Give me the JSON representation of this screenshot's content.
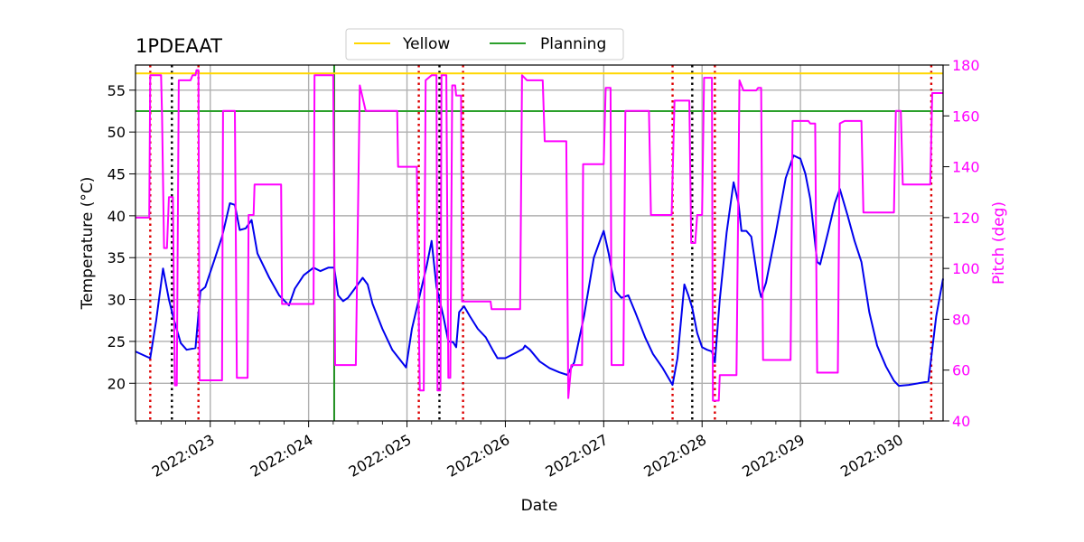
{
  "chart_data": {
    "type": "line",
    "title": "1PDEAAT",
    "xlabel": "Date",
    "ylabel": "Temperature ($^\\circ$C)",
    "ylabel_display": "Temperature (°C)",
    "y2label": "Pitch (deg)",
    "xlim": [
      22.24,
      30.45
    ],
    "ylim": [
      15.5,
      58
    ],
    "y2lim": [
      40,
      180
    ],
    "x_ticks": [
      {
        "value": 23,
        "label": "2022:023"
      },
      {
        "value": 24,
        "label": "2022:024"
      },
      {
        "value": 25,
        "label": "2022:025"
      },
      {
        "value": 26,
        "label": "2022:026"
      },
      {
        "value": 27,
        "label": "2022:027"
      },
      {
        "value": 28,
        "label": "2022:028"
      },
      {
        "value": 29,
        "label": "2022:029"
      },
      {
        "value": 30,
        "label": "2022:030"
      }
    ],
    "y_ticks": [
      20,
      25,
      30,
      35,
      40,
      45,
      50,
      55
    ],
    "y2_ticks": [
      40,
      60,
      80,
      100,
      120,
      140,
      160,
      180
    ],
    "grid": true,
    "legend_position": "top-center",
    "legend": [
      {
        "name": "Yellow",
        "color": "#ffd700"
      },
      {
        "name": "Planning",
        "color": "#2ca02c"
      }
    ],
    "hlines": [
      {
        "name": "Yellow",
        "value": 57.0,
        "color": "#ffd700"
      },
      {
        "name": "Planning",
        "value": 52.5,
        "color": "#2ca02c"
      }
    ],
    "vlines_red": [
      22.39,
      22.88,
      25.12,
      25.57,
      27.7,
      28.13,
      30.33
    ],
    "vlines_black": [
      22.61,
      25.33,
      27.9
    ],
    "vline_green": 24.26,
    "series": [
      {
        "name": "Temperature",
        "axis": "left",
        "color": "#0000ee",
        "points": [
          [
            22.24,
            23.8
          ],
          [
            22.35,
            23.2
          ],
          [
            22.39,
            23.0
          ],
          [
            22.45,
            27.5
          ],
          [
            22.52,
            33.7
          ],
          [
            22.58,
            30.0
          ],
          [
            22.63,
            27.6
          ],
          [
            22.7,
            24.8
          ],
          [
            22.76,
            24.0
          ],
          [
            22.85,
            24.2
          ],
          [
            22.9,
            31.0
          ],
          [
            22.95,
            31.5
          ],
          [
            23.05,
            35.0
          ],
          [
            23.12,
            37.5
          ],
          [
            23.15,
            39.0
          ],
          [
            23.2,
            41.5
          ],
          [
            23.25,
            41.3
          ],
          [
            23.3,
            38.3
          ],
          [
            23.36,
            38.5
          ],
          [
            23.42,
            39.5
          ],
          [
            23.48,
            35.5
          ],
          [
            23.6,
            32.6
          ],
          [
            23.7,
            30.5
          ],
          [
            23.8,
            29.3
          ],
          [
            23.86,
            31.3
          ],
          [
            23.95,
            32.9
          ],
          [
            24.05,
            33.8
          ],
          [
            24.12,
            33.4
          ],
          [
            24.2,
            33.8
          ],
          [
            24.26,
            33.8
          ],
          [
            24.3,
            30.5
          ],
          [
            24.35,
            29.8
          ],
          [
            24.4,
            30.2
          ],
          [
            24.5,
            31.8
          ],
          [
            24.55,
            32.6
          ],
          [
            24.6,
            31.8
          ],
          [
            24.65,
            29.5
          ],
          [
            24.75,
            26.5
          ],
          [
            24.85,
            24.0
          ],
          [
            24.95,
            22.5
          ],
          [
            24.99,
            21.9
          ],
          [
            25.05,
            26.5
          ],
          [
            25.12,
            30.0
          ],
          [
            25.2,
            34.0
          ],
          [
            25.25,
            37.0
          ],
          [
            25.3,
            31.5
          ],
          [
            25.33,
            30.0
          ],
          [
            25.37,
            28.0
          ],
          [
            25.42,
            25.0
          ],
          [
            25.47,
            24.9
          ],
          [
            25.5,
            24.3
          ],
          [
            25.53,
            28.5
          ],
          [
            25.58,
            29.2
          ],
          [
            25.64,
            28.0
          ],
          [
            25.72,
            26.5
          ],
          [
            25.8,
            25.5
          ],
          [
            25.87,
            24.0
          ],
          [
            25.92,
            23.0
          ],
          [
            26.0,
            23.0
          ],
          [
            26.1,
            23.6
          ],
          [
            26.18,
            24.1
          ],
          [
            26.2,
            24.5
          ],
          [
            26.25,
            24.0
          ],
          [
            26.35,
            22.6
          ],
          [
            26.45,
            21.8
          ],
          [
            26.55,
            21.3
          ],
          [
            26.63,
            21.0
          ],
          [
            26.7,
            22.5
          ],
          [
            26.8,
            28.0
          ],
          [
            26.9,
            35.0
          ],
          [
            26.97,
            37.3
          ],
          [
            27.0,
            38.2
          ],
          [
            27.05,
            35.5
          ],
          [
            27.12,
            31.0
          ],
          [
            27.18,
            30.2
          ],
          [
            27.25,
            30.5
          ],
          [
            27.32,
            28.5
          ],
          [
            27.42,
            25.5
          ],
          [
            27.5,
            23.5
          ],
          [
            27.6,
            21.8
          ],
          [
            27.7,
            19.8
          ],
          [
            27.75,
            23.0
          ],
          [
            27.82,
            31.8
          ],
          [
            27.86,
            30.5
          ],
          [
            27.9,
            29.0
          ],
          [
            27.95,
            26.0
          ],
          [
            28.0,
            24.3
          ],
          [
            28.05,
            24.0
          ],
          [
            28.1,
            23.8
          ],
          [
            28.13,
            22.5
          ],
          [
            28.18,
            30.0
          ],
          [
            28.25,
            38.0
          ],
          [
            28.32,
            44.0
          ],
          [
            28.37,
            41.5
          ],
          [
            28.4,
            38.2
          ],
          [
            28.45,
            38.2
          ],
          [
            28.5,
            37.5
          ],
          [
            28.58,
            31.2
          ],
          [
            28.6,
            30.3
          ],
          [
            28.65,
            32.0
          ],
          [
            28.75,
            38.0
          ],
          [
            28.85,
            44.5
          ],
          [
            28.93,
            47.2
          ],
          [
            29.0,
            46.8
          ],
          [
            29.05,
            45.0
          ],
          [
            29.1,
            42.0
          ],
          [
            29.17,
            34.5
          ],
          [
            29.2,
            34.2
          ],
          [
            29.28,
            38.0
          ],
          [
            29.35,
            41.5
          ],
          [
            29.4,
            43.2
          ],
          [
            29.48,
            40.0
          ],
          [
            29.55,
            37.0
          ],
          [
            29.62,
            34.5
          ],
          [
            29.7,
            28.5
          ],
          [
            29.78,
            24.5
          ],
          [
            29.87,
            22.0
          ],
          [
            29.95,
            20.3
          ],
          [
            30.0,
            19.7
          ],
          [
            30.1,
            19.8
          ],
          [
            30.3,
            20.2
          ],
          [
            30.38,
            28.0
          ],
          [
            30.45,
            32.5
          ]
        ]
      },
      {
        "name": "Pitch",
        "axis": "right",
        "color": "#ff00ff",
        "points": [
          [
            22.24,
            120
          ],
          [
            22.38,
            120
          ],
          [
            22.39,
            176
          ],
          [
            22.5,
            176
          ],
          [
            22.51,
            160
          ],
          [
            22.53,
            108
          ],
          [
            22.56,
            108
          ],
          [
            22.58,
            128
          ],
          [
            22.62,
            128
          ],
          [
            22.64,
            54
          ],
          [
            22.66,
            54
          ],
          [
            22.68,
            174
          ],
          [
            22.8,
            174
          ],
          [
            22.82,
            176
          ],
          [
            22.85,
            176
          ],
          [
            22.86,
            178
          ],
          [
            22.88,
            178
          ],
          [
            22.89,
            56
          ],
          [
            23.07,
            56
          ],
          [
            23.12,
            56
          ],
          [
            23.13,
            162
          ],
          [
            23.25,
            162
          ],
          [
            23.27,
            57
          ],
          [
            23.38,
            57
          ],
          [
            23.39,
            121
          ],
          [
            23.44,
            121
          ],
          [
            23.45,
            133
          ],
          [
            23.55,
            133
          ],
          [
            23.72,
            133
          ],
          [
            23.73,
            86
          ],
          [
            23.9,
            86
          ],
          [
            24.05,
            86
          ],
          [
            24.06,
            176
          ],
          [
            24.25,
            176
          ],
          [
            24.27,
            62
          ],
          [
            24.48,
            62
          ],
          [
            24.52,
            172
          ],
          [
            24.58,
            162
          ],
          [
            24.6,
            162
          ],
          [
            24.9,
            162
          ],
          [
            24.91,
            140
          ],
          [
            25.1,
            140
          ],
          [
            25.13,
            52
          ],
          [
            25.17,
            52
          ],
          [
            25.19,
            174
          ],
          [
            25.25,
            176
          ],
          [
            25.3,
            176
          ],
          [
            25.31,
            52
          ],
          [
            25.34,
            52
          ],
          [
            25.35,
            176
          ],
          [
            25.4,
            176
          ],
          [
            25.42,
            57
          ],
          [
            25.44,
            57
          ],
          [
            25.46,
            172
          ],
          [
            25.49,
            172
          ],
          [
            25.5,
            168
          ],
          [
            25.55,
            168
          ],
          [
            25.56,
            87
          ],
          [
            25.85,
            87
          ],
          [
            25.86,
            84
          ],
          [
            26.15,
            84
          ],
          [
            26.17,
            176
          ],
          [
            26.22,
            174
          ],
          [
            26.38,
            174
          ],
          [
            26.4,
            150
          ],
          [
            26.62,
            150
          ],
          [
            26.64,
            49
          ],
          [
            26.67,
            62
          ],
          [
            26.78,
            62
          ],
          [
            26.79,
            141
          ],
          [
            27.0,
            141
          ],
          [
            27.02,
            171
          ],
          [
            27.07,
            171
          ],
          [
            27.08,
            62
          ],
          [
            27.2,
            62
          ],
          [
            27.22,
            162
          ],
          [
            27.46,
            162
          ],
          [
            27.48,
            121
          ],
          [
            27.69,
            121
          ],
          [
            27.72,
            166
          ],
          [
            27.87,
            166
          ],
          [
            27.89,
            110
          ],
          [
            27.93,
            110
          ],
          [
            27.95,
            121
          ],
          [
            28.0,
            121
          ],
          [
            28.02,
            175
          ],
          [
            28.1,
            175
          ],
          [
            28.11,
            48
          ],
          [
            28.17,
            48
          ],
          [
            28.18,
            58
          ],
          [
            28.35,
            58
          ],
          [
            28.38,
            174
          ],
          [
            28.42,
            170
          ],
          [
            28.55,
            170
          ],
          [
            28.57,
            171
          ],
          [
            28.6,
            171
          ],
          [
            28.62,
            64
          ],
          [
            28.9,
            64
          ],
          [
            28.92,
            158
          ],
          [
            29.08,
            158
          ],
          [
            29.1,
            157
          ],
          [
            29.15,
            157
          ],
          [
            29.17,
            59
          ],
          [
            29.38,
            59
          ],
          [
            29.4,
            157
          ],
          [
            29.45,
            158
          ],
          [
            29.62,
            158
          ],
          [
            29.64,
            122
          ],
          [
            29.95,
            122
          ],
          [
            29.97,
            162
          ],
          [
            30.02,
            162
          ],
          [
            30.04,
            133
          ],
          [
            30.32,
            133
          ],
          [
            30.34,
            169
          ],
          [
            30.45,
            169
          ]
        ]
      }
    ]
  }
}
